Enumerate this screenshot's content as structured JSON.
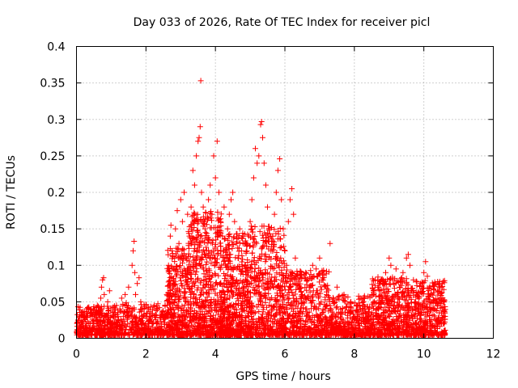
{
  "chart_data": {
    "type": "scatter",
    "title": "Day 033 of 2026, Rate Of TEC Index for receiver picl",
    "xlabel": "GPS time / hours",
    "ylabel": "ROTI / TECUs",
    "xlim": [
      0,
      12
    ],
    "ylim": [
      0,
      0.4
    ],
    "x_ticks": [
      0,
      2,
      4,
      6,
      8,
      10,
      12
    ],
    "y_ticks": [
      0,
      0.05,
      0.1,
      0.15,
      0.2,
      0.25,
      0.3,
      0.35,
      0.4
    ],
    "x_tick_labels": [
      "0",
      "2",
      "4",
      "6",
      "8",
      "10",
      "12"
    ],
    "y_tick_labels": [
      "0",
      "0.05",
      "0.1",
      "0.15",
      "0.2",
      "0.25",
      "0.3",
      "0.35",
      "0.4"
    ],
    "grid": true,
    "marker": "+",
    "series": [
      {
        "name": "ROTI",
        "color": "#ff0000",
        "points": [
          [
            0.02,
            0.012
          ],
          [
            0.05,
            0.025
          ],
          [
            0.08,
            0.018
          ],
          [
            0.1,
            0.03
          ],
          [
            0.12,
            0.008
          ],
          [
            0.15,
            0.022
          ],
          [
            0.18,
            0.035
          ],
          [
            0.2,
            0.015
          ],
          [
            0.25,
            0.028
          ],
          [
            0.3,
            0.01
          ],
          [
            0.35,
            0.04
          ],
          [
            0.4,
            0.02
          ],
          [
            0.45,
            0.032
          ],
          [
            0.5,
            0.012
          ],
          [
            0.55,
            0.026
          ],
          [
            0.6,
            0.045
          ],
          [
            0.65,
            0.018
          ],
          [
            0.7,
            0.055
          ],
          [
            0.72,
            0.07
          ],
          [
            0.75,
            0.08
          ],
          [
            0.78,
            0.083
          ],
          [
            0.8,
            0.06
          ],
          [
            0.85,
            0.03
          ],
          [
            0.9,
            0.05
          ],
          [
            0.95,
            0.065
          ],
          [
            1.0,
            0.02
          ],
          [
            1.05,
            0.035
          ],
          [
            1.1,
            0.015
          ],
          [
            1.15,
            0.045
          ],
          [
            1.2,
            0.025
          ],
          [
            1.25,
            0.04
          ],
          [
            1.3,
            0.055
          ],
          [
            1.35,
            0.03
          ],
          [
            1.4,
            0.06
          ],
          [
            1.45,
            0.045
          ],
          [
            1.5,
            0.07
          ],
          [
            1.55,
            0.035
          ],
          [
            1.6,
            0.1
          ],
          [
            1.63,
            0.12
          ],
          [
            1.66,
            0.133
          ],
          [
            1.68,
            0.09
          ],
          [
            1.7,
            0.06
          ],
          [
            1.75,
            0.075
          ],
          [
            1.8,
            0.083
          ],
          [
            1.85,
            0.05
          ],
          [
            1.9,
            0.03
          ],
          [
            1.95,
            0.04
          ],
          [
            2.0,
            0.02
          ],
          [
            2.05,
            0.012
          ],
          [
            2.1,
            0.025
          ],
          [
            2.2,
            0.015
          ],
          [
            2.3,
            0.02
          ],
          [
            2.4,
            0.01
          ],
          [
            2.5,
            0.028
          ],
          [
            2.55,
            0.045
          ],
          [
            2.6,
            0.06
          ],
          [
            2.65,
            0.1
          ],
          [
            2.7,
            0.14
          ],
          [
            2.72,
            0.155
          ],
          [
            2.75,
            0.12
          ],
          [
            2.8,
            0.08
          ],
          [
            2.85,
            0.15
          ],
          [
            2.9,
            0.175
          ],
          [
            2.95,
            0.13
          ],
          [
            3.0,
            0.19
          ],
          [
            3.05,
            0.16
          ],
          [
            3.1,
            0.2
          ],
          [
            3.15,
            0.11
          ],
          [
            3.2,
            0.17
          ],
          [
            3.25,
            0.14
          ],
          [
            3.3,
            0.18
          ],
          [
            3.35,
            0.23
          ],
          [
            3.4,
            0.21
          ],
          [
            3.45,
            0.25
          ],
          [
            3.5,
            0.27
          ],
          [
            3.53,
            0.275
          ],
          [
            3.56,
            0.29
          ],
          [
            3.58,
            0.353
          ],
          [
            3.6,
            0.2
          ],
          [
            3.65,
            0.18
          ],
          [
            3.7,
            0.15
          ],
          [
            3.75,
            0.12
          ],
          [
            3.8,
            0.19
          ],
          [
            3.85,
            0.21
          ],
          [
            3.9,
            0.17
          ],
          [
            3.95,
            0.25
          ],
          [
            4.0,
            0.22
          ],
          [
            4.05,
            0.27
          ],
          [
            4.1,
            0.2
          ],
          [
            4.15,
            0.16
          ],
          [
            4.2,
            0.14
          ],
          [
            4.25,
            0.18
          ],
          [
            4.3,
            0.12
          ],
          [
            4.35,
            0.15
          ],
          [
            4.4,
            0.17
          ],
          [
            4.45,
            0.19
          ],
          [
            4.5,
            0.2
          ],
          [
            4.55,
            0.16
          ],
          [
            4.6,
            0.13
          ],
          [
            4.65,
            0.11
          ],
          [
            4.7,
            0.15
          ],
          [
            4.75,
            0.12
          ],
          [
            4.8,
            0.14
          ],
          [
            4.85,
            0.1
          ],
          [
            4.9,
            0.13
          ],
          [
            4.95,
            0.09
          ],
          [
            5.0,
            0.16
          ],
          [
            5.05,
            0.19
          ],
          [
            5.1,
            0.22
          ],
          [
            5.15,
            0.26
          ],
          [
            5.2,
            0.24
          ],
          [
            5.25,
            0.25
          ],
          [
            5.3,
            0.293
          ],
          [
            5.33,
            0.297
          ],
          [
            5.36,
            0.275
          ],
          [
            5.4,
            0.24
          ],
          [
            5.45,
            0.21
          ],
          [
            5.5,
            0.18
          ],
          [
            5.55,
            0.15
          ],
          [
            5.6,
            0.12
          ],
          [
            5.65,
            0.14
          ],
          [
            5.7,
            0.17
          ],
          [
            5.75,
            0.2
          ],
          [
            5.8,
            0.23
          ],
          [
            5.85,
            0.246
          ],
          [
            5.9,
            0.19
          ],
          [
            5.95,
            0.15
          ],
          [
            6.0,
            0.12
          ],
          [
            6.05,
            0.1
          ],
          [
            6.1,
            0.16
          ],
          [
            6.15,
            0.19
          ],
          [
            6.2,
            0.205
          ],
          [
            6.25,
            0.17
          ],
          [
            6.3,
            0.11
          ],
          [
            6.4,
            0.08
          ],
          [
            6.5,
            0.06
          ],
          [
            6.6,
            0.09
          ],
          [
            6.7,
            0.07
          ],
          [
            6.8,
            0.1
          ],
          [
            6.9,
            0.095
          ],
          [
            7.0,
            0.11
          ],
          [
            7.1,
            0.08
          ],
          [
            7.2,
            0.06
          ],
          [
            7.3,
            0.13
          ],
          [
            7.4,
            0.05
          ],
          [
            7.5,
            0.07
          ],
          [
            7.6,
            0.04
          ],
          [
            7.7,
            0.06
          ],
          [
            7.8,
            0.035
          ],
          [
            7.9,
            0.05
          ],
          [
            8.0,
            0.03
          ],
          [
            8.1,
            0.045
          ],
          [
            8.2,
            0.025
          ],
          [
            8.3,
            0.04
          ],
          [
            8.4,
            0.03
          ],
          [
            8.5,
            0.06
          ],
          [
            8.6,
            0.08
          ],
          [
            8.7,
            0.07
          ],
          [
            8.8,
            0.05
          ],
          [
            8.9,
            0.09
          ],
          [
            9.0,
            0.11
          ],
          [
            9.05,
            0.1
          ],
          [
            9.1,
            0.08
          ],
          [
            9.2,
            0.095
          ],
          [
            9.3,
            0.07
          ],
          [
            9.4,
            0.09
          ],
          [
            9.5,
            0.11
          ],
          [
            9.55,
            0.115
          ],
          [
            9.6,
            0.1
          ],
          [
            9.7,
            0.08
          ],
          [
            9.8,
            0.06
          ],
          [
            9.9,
            0.075
          ],
          [
            10.0,
            0.09
          ],
          [
            10.05,
            0.105
          ],
          [
            10.1,
            0.085
          ],
          [
            10.2,
            0.06
          ],
          [
            10.3,
            0.04
          ],
          [
            10.4,
            0.065
          ],
          [
            10.45,
            0.075
          ],
          [
            10.5,
            0.07
          ],
          [
            10.55,
            0.05
          ],
          [
            10.6,
            0.03
          ]
        ],
        "dense_clusters": [
          {
            "x_start": 0.0,
            "x_end": 1.0,
            "y_min": 0.0,
            "y_max": 0.04,
            "count": 320
          },
          {
            "x_start": 1.0,
            "x_end": 2.6,
            "y_min": 0.0,
            "y_max": 0.045,
            "count": 420
          },
          {
            "x_start": 2.6,
            "x_end": 3.2,
            "y_min": 0.0,
            "y_max": 0.12,
            "count": 340
          },
          {
            "x_start": 3.2,
            "x_end": 4.2,
            "y_min": 0.0,
            "y_max": 0.17,
            "count": 620
          },
          {
            "x_start": 4.2,
            "x_end": 5.0,
            "y_min": 0.0,
            "y_max": 0.14,
            "count": 520
          },
          {
            "x_start": 5.0,
            "x_end": 6.0,
            "y_min": 0.0,
            "y_max": 0.15,
            "count": 520
          },
          {
            "x_start": 6.0,
            "x_end": 7.3,
            "y_min": 0.0,
            "y_max": 0.09,
            "count": 480
          },
          {
            "x_start": 7.3,
            "x_end": 8.5,
            "y_min": 0.0,
            "y_max": 0.055,
            "count": 420
          },
          {
            "x_start": 8.5,
            "x_end": 9.5,
            "y_min": 0.0,
            "y_max": 0.08,
            "count": 420
          },
          {
            "x_start": 9.5,
            "x_end": 10.62,
            "y_min": 0.0,
            "y_max": 0.075,
            "count": 460
          }
        ]
      }
    ]
  }
}
